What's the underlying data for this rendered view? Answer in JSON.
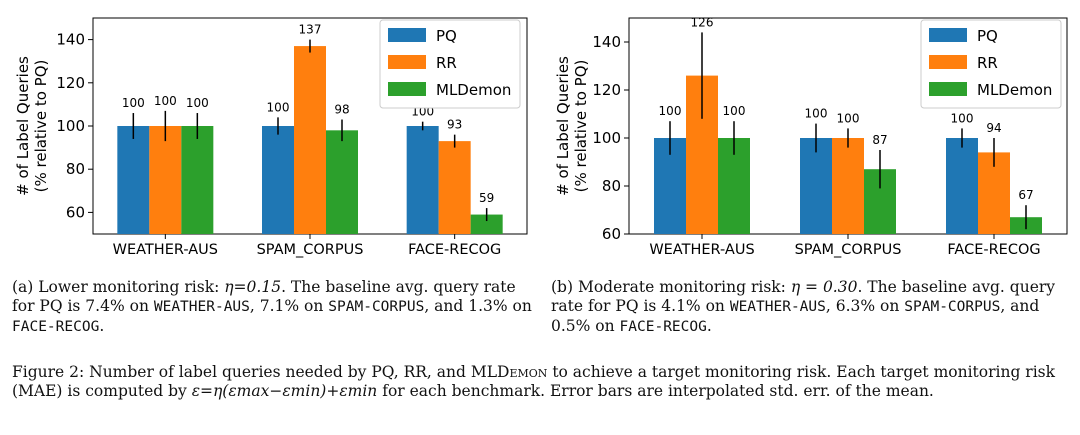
{
  "colors": {
    "PQ": "#1f77b4",
    "RR": "#ff7f0e",
    "MLDemon": "#2ca02c"
  },
  "chart_data": [
    {
      "type": "bar",
      "id": "a",
      "ylabel": "# of Label Queries\n(% relative to PQ)",
      "categories": [
        "WEATHER-AUS",
        "SPAM_CORPUS",
        "FACE-RECOG"
      ],
      "ylim": [
        50,
        150
      ],
      "yticks": [
        60,
        80,
        100,
        120,
        140
      ],
      "legend": "top-right",
      "series": [
        {
          "name": "PQ",
          "values": [
            100,
            100,
            100
          ],
          "err": [
            6,
            4,
            2
          ],
          "labels": [
            "100",
            "100",
            "100"
          ]
        },
        {
          "name": "RR",
          "values": [
            100,
            137,
            93
          ],
          "err": [
            7,
            3,
            3
          ],
          "labels": [
            "100",
            "137",
            "93"
          ]
        },
        {
          "name": "MLDemon",
          "values": [
            100,
            98,
            59
          ],
          "err": [
            6,
            5,
            3
          ],
          "labels": [
            "100",
            "98",
            "59"
          ]
        }
      ]
    },
    {
      "type": "bar",
      "id": "b",
      "ylabel": "# of Label Queries\n(% relative to PQ)",
      "categories": [
        "WEATHER-AUS",
        "SPAM_CORPUS",
        "FACE-RECOG"
      ],
      "ylim": [
        60,
        150
      ],
      "yticks": [
        60,
        80,
        100,
        120,
        140
      ],
      "legend": "top-right",
      "series": [
        {
          "name": "PQ",
          "values": [
            100,
            100,
            100
          ],
          "err": [
            7,
            6,
            4
          ],
          "labels": [
            "100",
            "100",
            "100"
          ]
        },
        {
          "name": "RR",
          "values": [
            126,
            100,
            94
          ],
          "err": [
            18,
            4,
            6
          ],
          "labels": [
            "126",
            "100",
            "94"
          ]
        },
        {
          "name": "MLDemon",
          "values": [
            100,
            87,
            67
          ],
          "err": [
            7,
            8,
            5
          ],
          "labels": [
            "100",
            "87",
            "67"
          ]
        }
      ]
    }
  ],
  "captions": {
    "a": {
      "prefix": "(a) Lower monitoring risk: ",
      "eta": "η=0.15",
      "mid": ". The baseline avg. query rate for PQ is 7.4% on ",
      "d1": "WEATHER-AUS",
      "m1": ", 7.1% on ",
      "d2": "SPAM-CORPUS",
      "m2": ", and 1.3% on ",
      "d3": "FACE-RECOG",
      "end": "."
    },
    "b": {
      "prefix": "(b) Moderate monitoring risk: ",
      "eta": "η = 0.30",
      "mid": ". The baseline avg. query rate for PQ is 4.1% on ",
      "d1": "WEATHER-AUS",
      "m1": ", 6.3% on ",
      "d2": "SPAM-CORPUS",
      "m2": ", and 0.5% on ",
      "d3": "FACE-RECOG",
      "end": "."
    },
    "figure": {
      "lead": "Figure 2: Number of label queries needed by PQ, RR, and ML",
      "demon": "Demon",
      "mid": " to achieve a target monitoring risk. Each target monitoring risk (MAE) is computed by ",
      "formula": "ε=η(εmax−εmin)+εmin",
      "end": " for each benchmark. Error bars are interpolated std. err. of the mean."
    }
  }
}
